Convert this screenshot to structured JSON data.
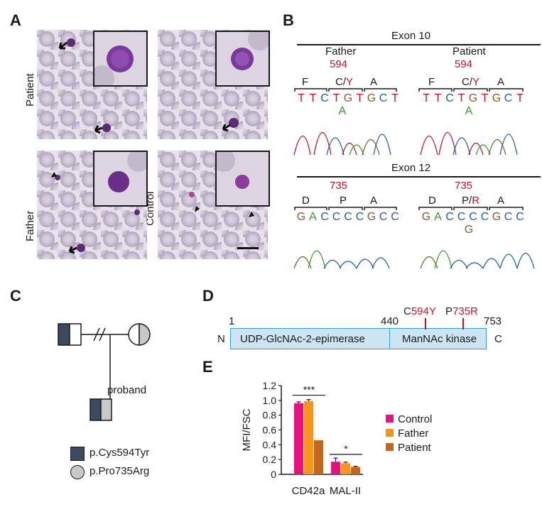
{
  "panels": {
    "a": "A",
    "b": "B",
    "c": "C",
    "d": "D",
    "e": "E"
  },
  "panel_a": {
    "row_labels": {
      "patient": "Patient",
      "father": "Father",
      "control": "Control"
    }
  },
  "panel_b": {
    "exon10": {
      "title": "Exon 10",
      "father": {
        "label": "Father",
        "position": "594",
        "codons": [
          "F",
          "C/",
          "A"
        ],
        "codon_variant": "Y",
        "bases": [
          "T",
          "T",
          "C",
          "T",
          "G",
          "T",
          "G",
          "C",
          "T"
        ],
        "alt_base": "A"
      },
      "patient": {
        "label": "Patient",
        "position": "594",
        "codons": [
          "F",
          "C/",
          "A"
        ],
        "codon_variant": "Y",
        "bases": [
          "T",
          "T",
          "C",
          "T",
          "G",
          "T",
          "G",
          "C",
          "T"
        ],
        "alt_base": "A"
      }
    },
    "exon12": {
      "title": "Exon 12",
      "left": {
        "position": "735",
        "codons": [
          "D",
          "P",
          "A"
        ],
        "bases": [
          "G",
          "A",
          "C",
          "C",
          "C",
          "C",
          "G",
          "C",
          "C"
        ]
      },
      "right": {
        "position": "735",
        "codons": [
          "D",
          "P/",
          "A"
        ],
        "codon_variant": "R",
        "bases": [
          "G",
          "A",
          "C",
          "C",
          "C",
          "C",
          "G",
          "C",
          "C"
        ],
        "alt_base": "G"
      }
    },
    "base_colors": {
      "T": "#c8102e",
      "C": "#1f5fa8",
      "G": "#8b5a2b",
      "A": "#2ca02c"
    }
  },
  "panel_c": {
    "proband_label": "proband",
    "legend": [
      {
        "shape": "square",
        "label": "p.Cys594Tyr"
      },
      {
        "shape": "circle",
        "label": "p.Pro735Arg"
      }
    ]
  },
  "panel_d": {
    "start": "1",
    "mid": "440",
    "end": "753",
    "n_term": "N",
    "c_term": "C",
    "domains": [
      "UDP-GlcNAc-2-epimerase",
      "ManNAc kinase"
    ],
    "mut1_wt": "C",
    "mut1_pos": "594Y",
    "mut2_wt": "P",
    "mut2_pos": "735R"
  },
  "chart_data": {
    "type": "bar",
    "ylabel": "MFI/FSC",
    "ylim": [
      0,
      1.2
    ],
    "yticks": [
      "0",
      "0.2",
      "0.4",
      "0.6",
      "0.8",
      "1.0",
      "1.2"
    ],
    "categories": [
      "CD42a",
      "MAL-II"
    ],
    "series": [
      {
        "name": "Control",
        "color": "#e5127d",
        "values": [
          0.96,
          0.17
        ],
        "errors": [
          0.02,
          0.05
        ]
      },
      {
        "name": "Father",
        "color": "#f7941d",
        "values": [
          0.99,
          0.15
        ],
        "errors": [
          0.02,
          0.015
        ]
      },
      {
        "name": "Patient",
        "color": "#c4661f",
        "values": [
          0.46,
          0.1
        ],
        "errors": [
          0,
          0.01
        ]
      }
    ],
    "significance": [
      "***",
      "*"
    ]
  }
}
